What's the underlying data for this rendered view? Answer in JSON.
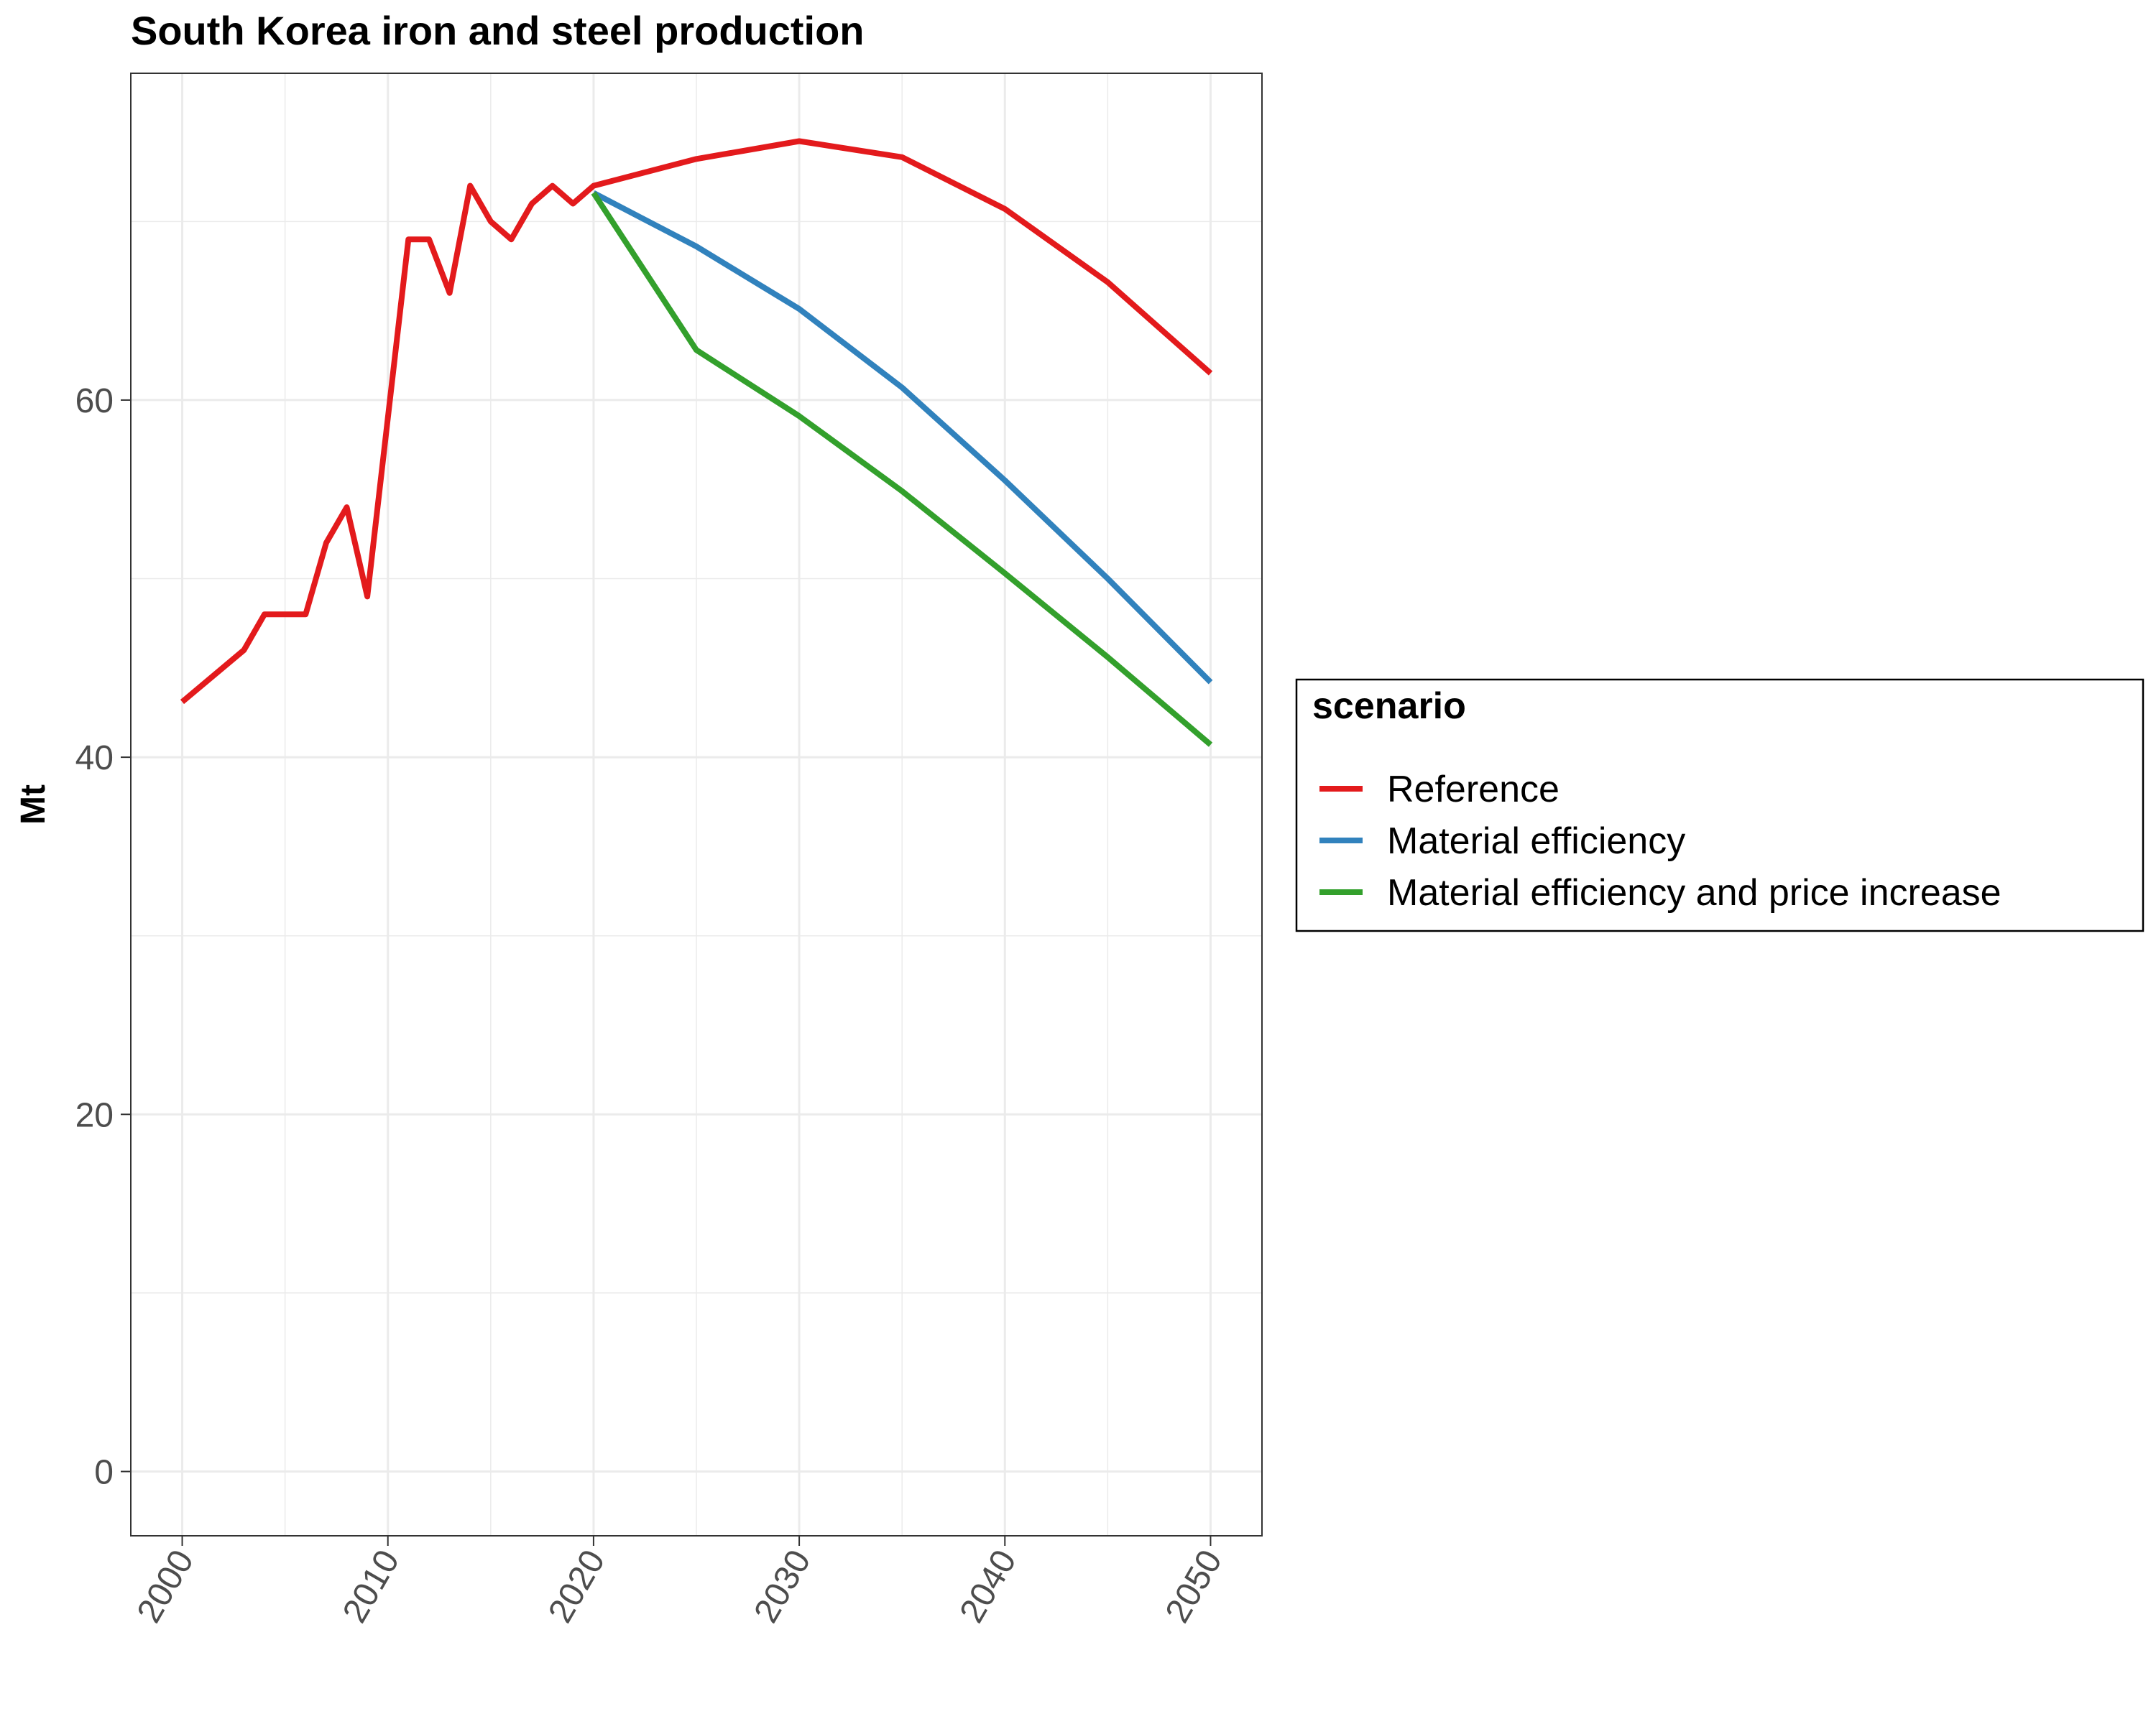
{
  "chart_data": {
    "type": "line",
    "title": "South Korea  iron and steel production",
    "xlabel": "",
    "ylabel": "Mt",
    "xlim": [
      1997.5,
      2052.5
    ],
    "ylim": [
      -3.6,
      78.3
    ],
    "x_ticks": [
      2000,
      2010,
      2020,
      2030,
      2040,
      2050
    ],
    "y_ticks": [
      0,
      20,
      40,
      60
    ],
    "grid": true,
    "legend": {
      "title": "scenario",
      "position": "right"
    },
    "series": [
      {
        "name": "Reference",
        "color": "#e31a1c",
        "points": [
          [
            2000,
            43.1
          ],
          [
            2003,
            46.0
          ],
          [
            2004,
            48.0
          ],
          [
            2006,
            48.0
          ],
          [
            2007,
            52.0
          ],
          [
            2008,
            54.0
          ],
          [
            2009,
            49.0
          ],
          [
            2010,
            59.0
          ],
          [
            2011,
            69.0
          ],
          [
            2012,
            69.0
          ],
          [
            2013,
            66.0
          ],
          [
            2014,
            72.0
          ],
          [
            2015,
            70.0
          ],
          [
            2016,
            69.0
          ],
          [
            2017,
            71.0
          ],
          [
            2018,
            72.0
          ],
          [
            2019,
            71.0
          ],
          [
            2020,
            72.0
          ],
          [
            2025,
            73.5
          ],
          [
            2030,
            74.5
          ],
          [
            2035,
            73.6
          ],
          [
            2040,
            70.7
          ],
          [
            2045,
            66.6
          ],
          [
            2050,
            61.5
          ]
        ]
      },
      {
        "name": "Material efficiency",
        "color": "#3182bd",
        "points": [
          [
            2020,
            71.6
          ],
          [
            2025,
            68.6
          ],
          [
            2030,
            65.1
          ],
          [
            2035,
            60.7
          ],
          [
            2040,
            55.5
          ],
          [
            2045,
            50.0
          ],
          [
            2050,
            44.2
          ]
        ]
      },
      {
        "name": "Material efficiency and price increase",
        "color": "#33a02c",
        "points": [
          [
            2020,
            71.6
          ],
          [
            2025,
            62.8
          ],
          [
            2030,
            59.1
          ],
          [
            2035,
            54.9
          ],
          [
            2040,
            50.3
          ],
          [
            2045,
            45.6
          ],
          [
            2050,
            40.7
          ]
        ]
      }
    ]
  }
}
